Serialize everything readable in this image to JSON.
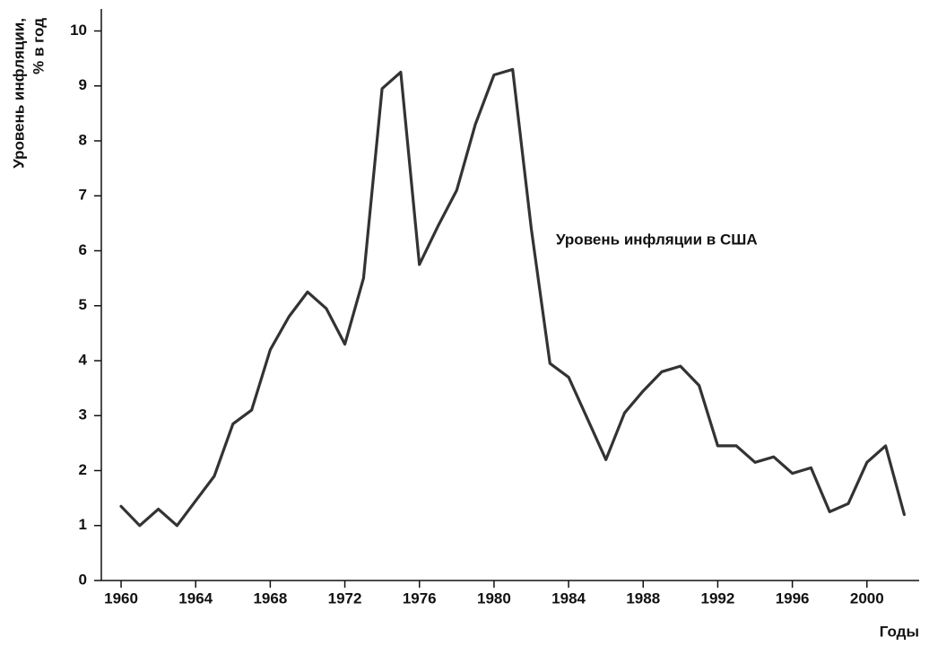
{
  "chart_data": {
    "type": "line",
    "ylabel": [
      "Уровень инфляции,",
      "% в год"
    ],
    "xlabel": "Годы",
    "annotation": "Уровень инфляции в США",
    "x": [
      1960,
      1961,
      1962,
      1963,
      1964,
      1965,
      1966,
      1967,
      1968,
      1969,
      1970,
      1971,
      1972,
      1973,
      1974,
      1975,
      1976,
      1977,
      1978,
      1979,
      1980,
      1981,
      1982,
      1983,
      1984,
      1985,
      1986,
      1987,
      1988,
      1989,
      1990,
      1991,
      1992,
      1993,
      1994,
      1995,
      1996,
      1997,
      1998,
      1999,
      2000,
      2001,
      2002
    ],
    "series": [
      {
        "color": "#333333",
        "values": [
          1.35,
          1.0,
          1.3,
          1.0,
          1.45,
          1.9,
          2.85,
          3.1,
          4.2,
          4.8,
          5.25,
          4.95,
          4.3,
          5.5,
          8.95,
          9.25,
          5.75,
          6.45,
          7.1,
          8.3,
          9.2,
          9.3,
          6.4,
          3.95,
          3.7,
          2.95,
          2.2,
          3.05,
          3.45,
          3.8,
          3.9,
          3.55,
          2.45,
          2.45,
          2.15,
          2.25,
          1.95,
          2.05,
          1.25,
          1.4,
          2.15,
          2.45,
          1.2
        ]
      }
    ],
    "xlim": [
      1958.94,
      2002.8
    ],
    "xticks": [
      1960,
      1964,
      1968,
      1972,
      1976,
      1980,
      1984,
      1988,
      1992,
      1996,
      2000
    ],
    "ylim": [
      0,
      10.4
    ],
    "yticks": [
      0,
      1,
      2,
      3,
      4,
      5,
      6,
      7,
      8,
      9,
      10
    ],
    "grid": false
  }
}
